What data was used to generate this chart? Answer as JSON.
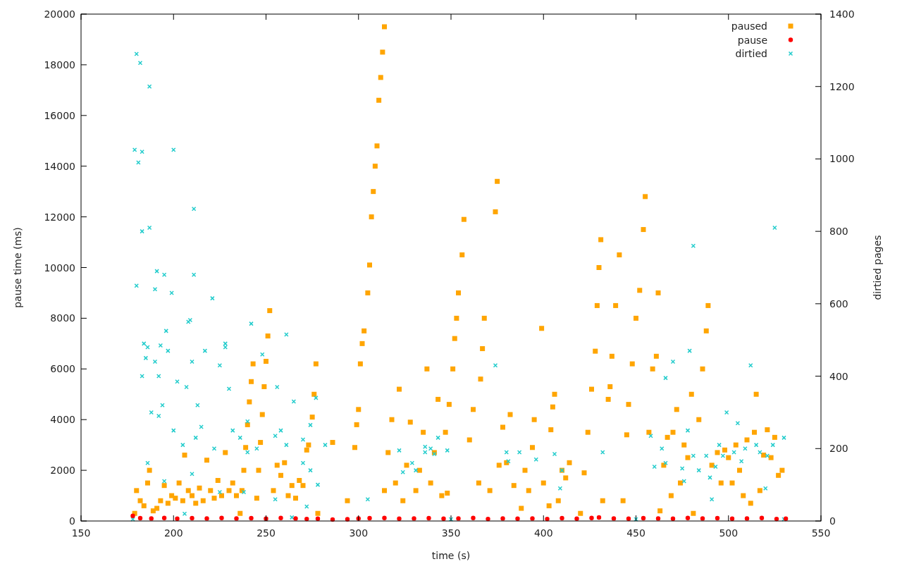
{
  "chart_data": {
    "type": "scatter",
    "xlabel": "time (s)",
    "ylabel": "pause time (ms)",
    "y2label": "dirtied pages",
    "xlim": [
      150,
      550
    ],
    "xticks": [
      150,
      200,
      250,
      300,
      350,
      400,
      450,
      500,
      550
    ],
    "ylim": [
      0,
      20000
    ],
    "yticks": [
      0,
      2000,
      4000,
      6000,
      8000,
      10000,
      12000,
      14000,
      16000,
      18000,
      20000
    ],
    "y2lim": [
      0,
      1400
    ],
    "y2ticks": [
      0,
      200,
      400,
      600,
      800,
      1000,
      1200,
      1400
    ],
    "legend": "top right",
    "grid": false,
    "series": [
      {
        "name": "paused",
        "color": "#ffa500",
        "marker": "square",
        "x": [
          179,
          180,
          182,
          184,
          186,
          187,
          189,
          191,
          193,
          195,
          197,
          199,
          201,
          203,
          205,
          206,
          208,
          210,
          212,
          214,
          216,
          218,
          220,
          222,
          224,
          226,
          228,
          230,
          232,
          234,
          236,
          237,
          238,
          239,
          240,
          241,
          242,
          243,
          245,
          246,
          247,
          248,
          249,
          250,
          251,
          252,
          254,
          256,
          258,
          260,
          262,
          264,
          266,
          268,
          270,
          272,
          273,
          275,
          276,
          277,
          278,
          286,
          294,
          298,
          299,
          300,
          301,
          302,
          303,
          305,
          306,
          307,
          308,
          309,
          310,
          311,
          312,
          313,
          314,
          314,
          316,
          318,
          320,
          322,
          324,
          326,
          328,
          331,
          333,
          335,
          337,
          339,
          341,
          343,
          345,
          347,
          348,
          349,
          351,
          352,
          353,
          354,
          356,
          357,
          360,
          362,
          365,
          366,
          367,
          368,
          371,
          374,
          375,
          376,
          378,
          380,
          382,
          384,
          388,
          390,
          392,
          394,
          395,
          399,
          400,
          403,
          404,
          405,
          406,
          408,
          410,
          412,
          414,
          420,
          422,
          424,
          426,
          428,
          429,
          430,
          431,
          432,
          435,
          436,
          437,
          439,
          441,
          443,
          445,
          446,
          448,
          450,
          452,
          454,
          455,
          457,
          459,
          461,
          462,
          463,
          465,
          467,
          469,
          470,
          472,
          474,
          476,
          478,
          480,
          481,
          484,
          486,
          488,
          489,
          491,
          494,
          496,
          498,
          500,
          502,
          504,
          506,
          508,
          510,
          512,
          514,
          515,
          517,
          519,
          521,
          523,
          525,
          527,
          529
        ],
        "values": [
          300,
          1200,
          800,
          600,
          1500,
          2000,
          400,
          500,
          800,
          1400,
          700,
          1000,
          900,
          1500,
          800,
          2600,
          1200,
          1000,
          700,
          1300,
          800,
          2400,
          1200,
          900,
          1600,
          1000,
          2700,
          1200,
          1500,
          1000,
          300,
          1200,
          2000,
          2900,
          3800,
          4700,
          5500,
          6200,
          900,
          2000,
          3100,
          4200,
          5300,
          6300,
          7300,
          8300,
          1200,
          2200,
          1800,
          2300,
          1000,
          1400,
          900,
          1600,
          1400,
          2800,
          3000,
          4100,
          5000,
          6200,
          300,
          3100,
          800,
          2900,
          3800,
          4400,
          6200,
          7000,
          7500,
          9000,
          10100,
          12000,
          13000,
          14000,
          14800,
          16600,
          17500,
          18500,
          19500,
          1200,
          2700,
          4000,
          1500,
          5200,
          800,
          2200,
          3900,
          1200,
          2000,
          3500,
          6000,
          1500,
          2700,
          4800,
          1000,
          3500,
          1100,
          4600,
          6000,
          7200,
          8000,
          9000,
          10500,
          11900,
          3200,
          4400,
          1500,
          5600,
          6800,
          8000,
          1200,
          12200,
          13400,
          2200,
          3700,
          2300,
          4200,
          1400,
          500,
          2000,
          1200,
          2900,
          4000,
          7600,
          1500,
          600,
          3600,
          4500,
          5000,
          800,
          2000,
          1700,
          2300,
          300,
          1900,
          3500,
          5200,
          6700,
          8500,
          10000,
          11100,
          800,
          4800,
          5300,
          6500,
          8500,
          10500,
          800,
          3400,
          4600,
          6200,
          8000,
          9100,
          11500,
          12800,
          3500,
          6000,
          6500,
          9000,
          400,
          2200,
          3300,
          1000,
          3500,
          4400,
          1500,
          3000,
          2500,
          5000,
          300,
          4000,
          6000,
          7500,
          8500,
          2200,
          2700,
          1500,
          2800,
          2500,
          1500,
          3000,
          2000,
          1000,
          3200,
          700,
          3500,
          5000,
          1200,
          2600,
          3600,
          2500,
          3300,
          1800,
          2000
        ]
      },
      {
        "name": "pause",
        "color": "#ff0000",
        "marker": "circle",
        "x": [
          178,
          182,
          188,
          195,
          202,
          210,
          218,
          226,
          234,
          242,
          250,
          258,
          266,
          272,
          278,
          286,
          294,
          300,
          306,
          314,
          322,
          330,
          338,
          346,
          354,
          362,
          370,
          378,
          386,
          394,
          402,
          410,
          418,
          426,
          430,
          438,
          446,
          454,
          462,
          470,
          478,
          486,
          494,
          502,
          510,
          518,
          526,
          531
        ],
        "values": [
          200,
          110,
          100,
          120,
          90,
          110,
          100,
          120,
          100,
          110,
          90,
          120,
          100,
          80,
          90,
          60,
          70,
          100,
          110,
          120,
          90,
          100,
          110,
          90,
          100,
          120,
          80,
          100,
          90,
          100,
          80,
          110,
          90,
          120,
          140,
          100,
          90,
          110,
          100,
          90,
          120,
          100,
          110,
          90,
          100,
          120,
          80,
          90
        ]
      },
      {
        "name": "dirtied",
        "color": "#22cccc",
        "marker": "cross",
        "axis": "y2",
        "x": [
          179,
          180,
          181,
          182,
          183,
          187,
          200,
          211,
          180,
          183,
          187,
          191,
          195,
          199,
          190,
          196,
          211,
          208,
          209,
          221,
          242,
          184,
          186,
          193,
          197,
          228,
          228,
          248,
          261,
          185,
          190,
          202,
          207,
          210,
          183,
          192,
          194,
          188,
          192,
          200,
          217,
          225,
          230,
          205,
          212,
          215,
          222,
          232,
          240,
          245,
          255,
          261,
          270,
          277,
          282,
          278,
          186,
          195,
          210,
          225,
          238,
          255,
          272,
          206,
          264,
          213,
          236,
          240,
          258,
          265,
          270,
          274,
          256,
          274,
          331,
          336,
          339,
          343,
          341,
          348,
          322,
          324,
          329,
          336,
          305,
          374,
          380,
          381,
          387,
          396,
          406,
          410,
          409,
          432,
          458,
          464,
          466,
          470,
          475,
          478,
          479,
          481,
          481,
          484,
          488,
          490,
          493,
          495,
          497,
          499,
          503,
          505,
          509,
          512,
          515,
          517,
          521,
          524,
          525,
          530,
          520,
          507,
          466,
          476,
          491,
          460,
          178,
          250,
          350,
          450,
          530
        ],
        "values": [
          1025,
          1290,
          990,
          1265,
          1020,
          1200,
          1025,
          862,
          650,
          800,
          810,
          690,
          680,
          630,
          640,
          525,
          680,
          550,
          555,
          615,
          545,
          490,
          480,
          485,
          470,
          490,
          480,
          460,
          515,
          450,
          440,
          385,
          370,
          440,
          400,
          400,
          320,
          300,
          290,
          250,
          470,
          430,
          365,
          210,
          230,
          260,
          200,
          250,
          190,
          200,
          235,
          210,
          225,
          340,
          210,
          100,
          160,
          110,
          130,
          80,
          80,
          60,
          40,
          20,
          10,
          320,
          230,
          275,
          250,
          330,
          160,
          265,
          370,
          140,
          140,
          205,
          200,
          230,
          185,
          195,
          195,
          135,
          160,
          190,
          60,
          430,
          190,
          165,
          190,
          170,
          185,
          140,
          90,
          190,
          235,
          200,
          160,
          440,
          145,
          250,
          470,
          180,
          760,
          140,
          180,
          120,
          150,
          210,
          180,
          300,
          190,
          270,
          200,
          430,
          210,
          190,
          180,
          210,
          810,
          230,
          90,
          165,
          395,
          110,
          60,
          150,
          5,
          5,
          5,
          5,
          5
        ]
      }
    ]
  }
}
